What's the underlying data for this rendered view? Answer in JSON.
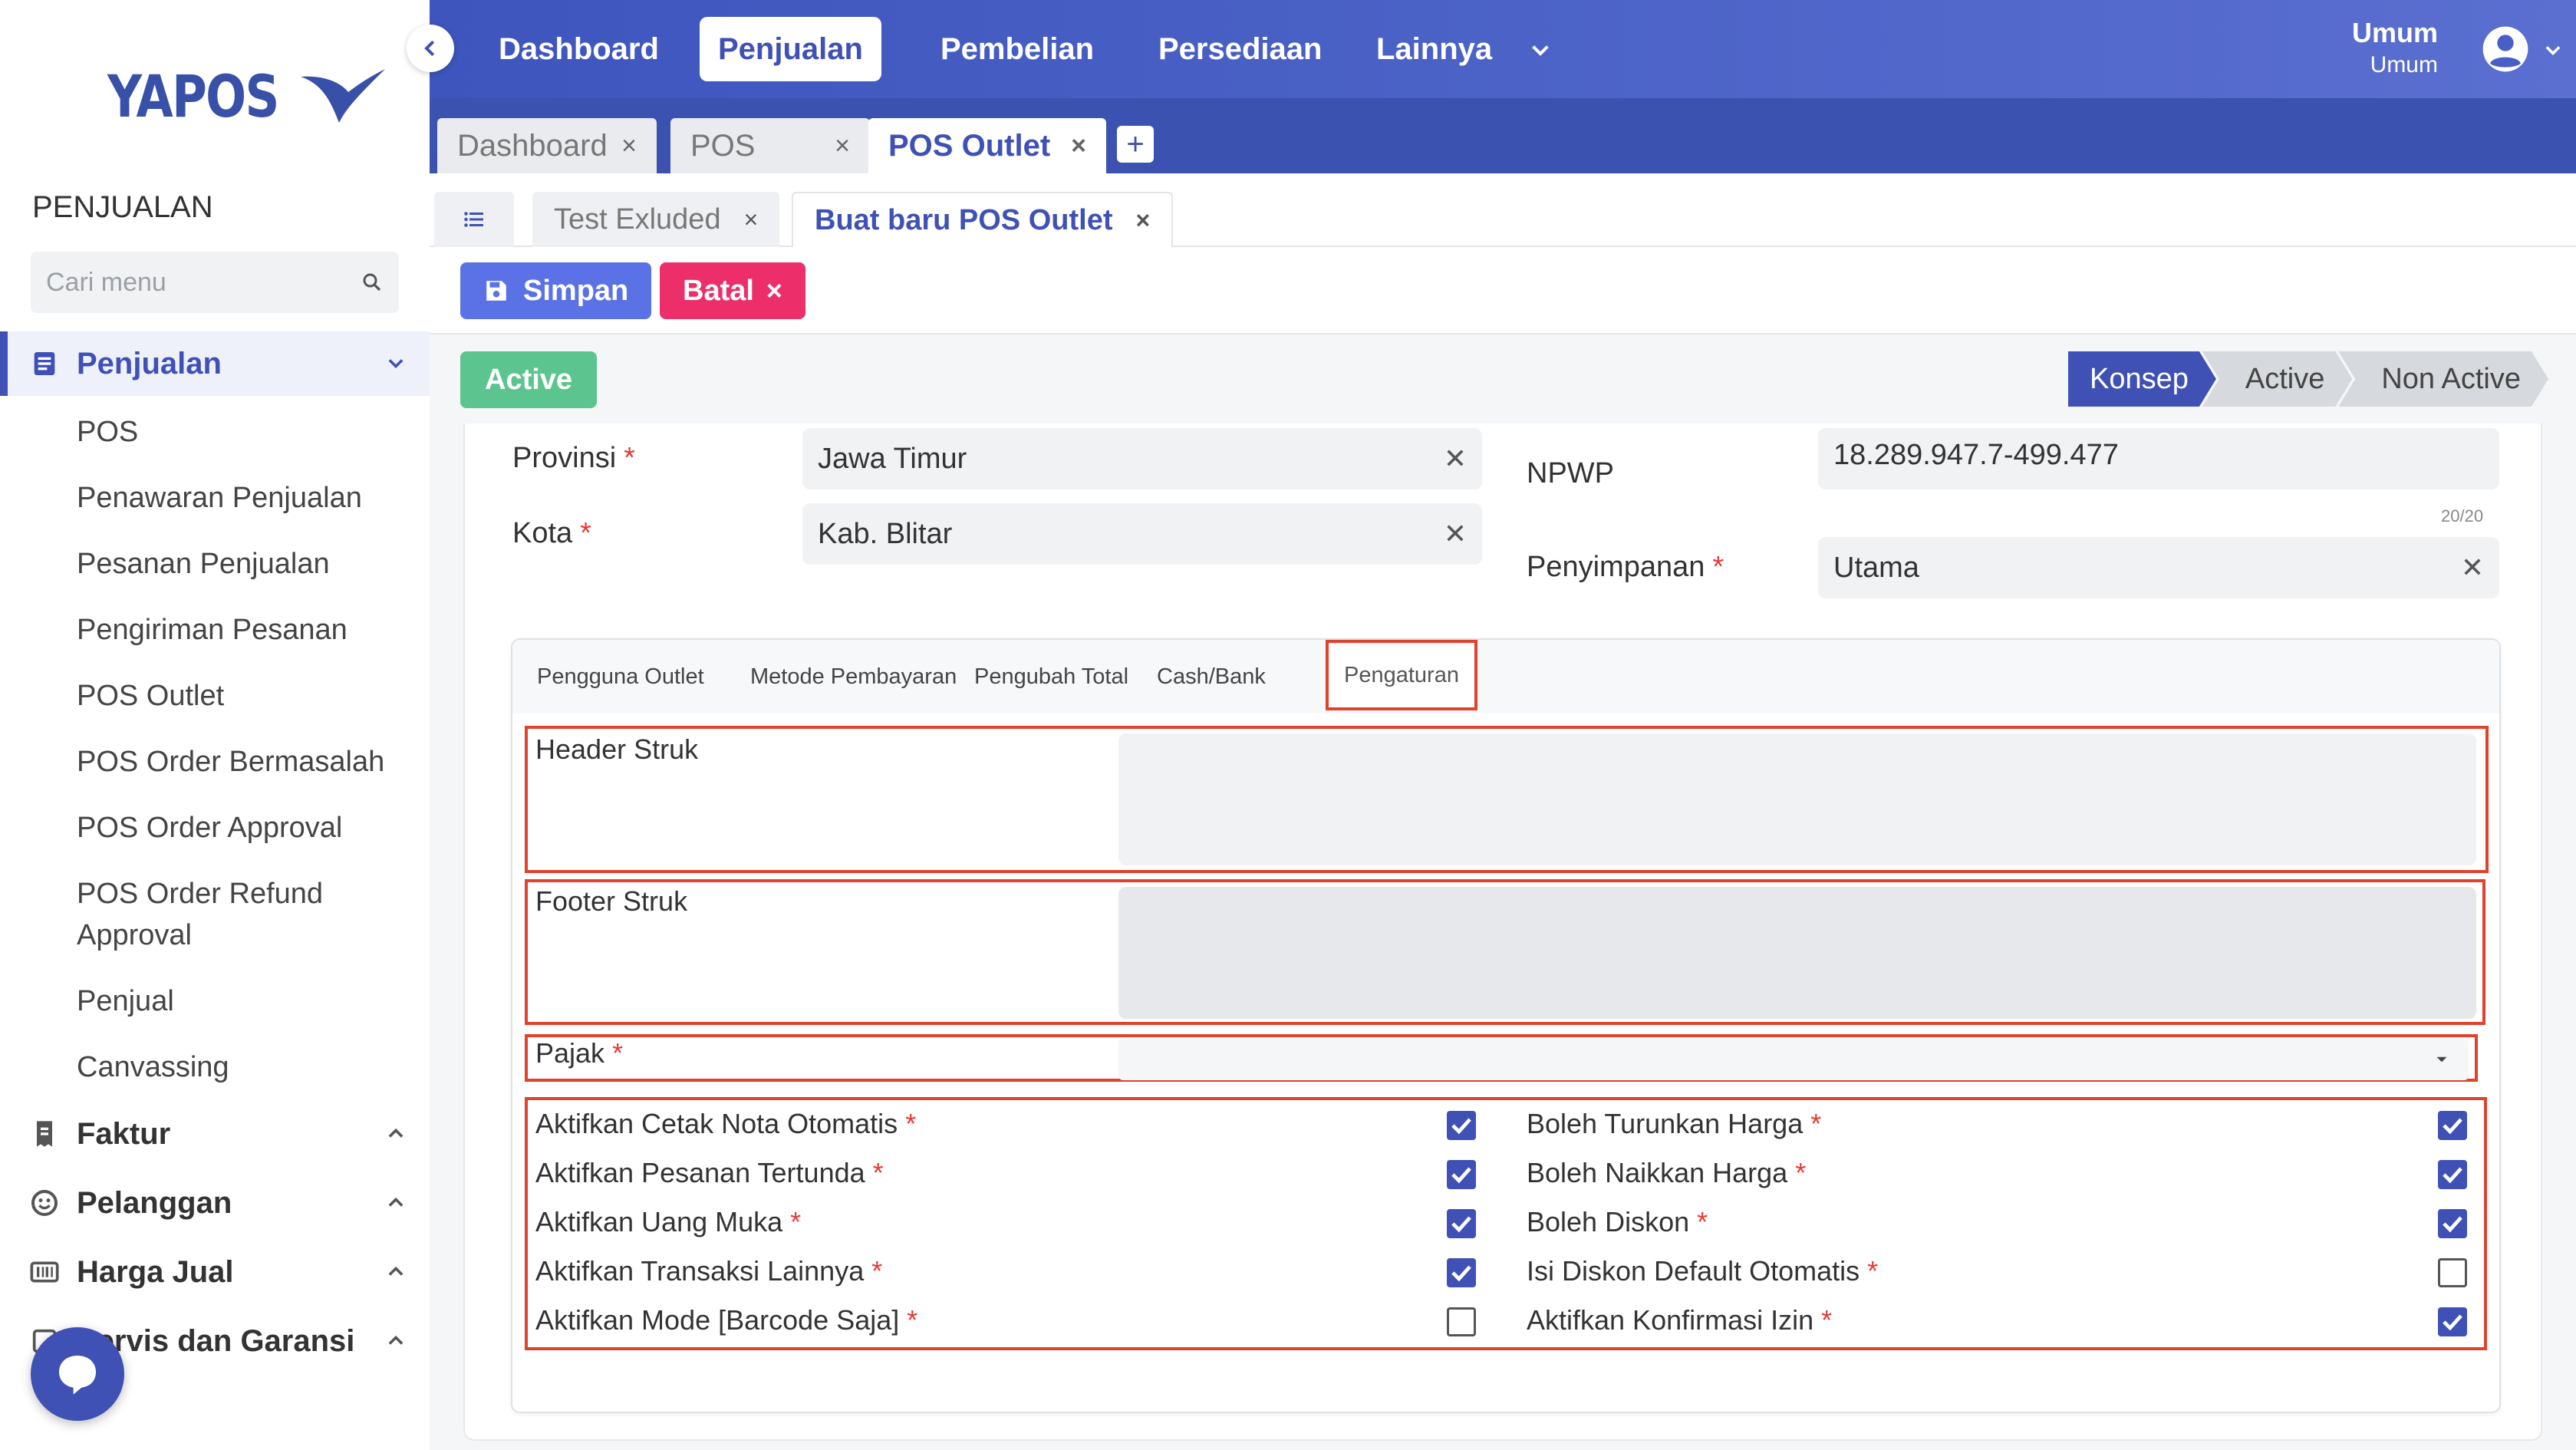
{
  "app": {
    "logo_text": "YAPOS"
  },
  "sidebar": {
    "section_title": "PENJUALAN",
    "search_placeholder": "Cari menu",
    "groups": [
      {
        "label": "Penjualan",
        "expanded": true
      },
      {
        "label": "Faktur",
        "expanded": false
      },
      {
        "label": "Pelanggan",
        "expanded": false
      },
      {
        "label": "Harga Jual",
        "expanded": false
      },
      {
        "label": "Servis dan Garansi",
        "expanded": false
      }
    ],
    "penjualan_items": [
      "POS",
      "Penawaran Penjualan",
      "Pesanan Penjualan",
      "Pengiriman Pesanan",
      "POS Outlet",
      "POS Order Bermasalah",
      "POS Order Approval",
      "POS Order Refund Approval",
      "Penjual",
      "Canvassing"
    ]
  },
  "topnav": {
    "items": [
      "Dashboard",
      "Penjualan",
      "Pembelian",
      "Persediaan",
      "Lainnya"
    ],
    "active": "Penjualan",
    "user_name": "Umum",
    "user_role": "Umum"
  },
  "window_tabs": {
    "items": [
      "Dashboard",
      "POS",
      "POS Outlet"
    ],
    "active": "POS Outlet"
  },
  "sub_tabs": {
    "items": [
      "Test Exluded",
      "Buat baru POS Outlet"
    ],
    "active": "Buat baru POS Outlet"
  },
  "toolbar": {
    "save_label": "Simpan",
    "cancel_label": "Batal"
  },
  "status": {
    "badge": "Active",
    "steps": [
      "Konsep",
      "Active",
      "Non Active"
    ],
    "current_step": "Konsep"
  },
  "form": {
    "provinsi_label": "Provinsi",
    "provinsi_value": "Jawa Timur",
    "kota_label": "Kota",
    "kota_value": "Kab. Blitar",
    "npwp_label": "NPWP",
    "npwp_value": "18.289.947.7-499.477",
    "npwp_counter": "20/20",
    "penyimpanan_label": "Penyimpanan",
    "penyimpanan_value": "Utama",
    "required_mark": "*"
  },
  "panel": {
    "tabs": [
      "Pengguna Outlet",
      "Metode Pembayaran",
      "Pengubah Total",
      "Cash/Bank",
      "Pengaturan"
    ],
    "active_tab": "Pengaturan",
    "header_struk_label": "Header Struk",
    "footer_struk_label": "Footer Struk",
    "pajak_label": "Pajak",
    "checkboxes_left": [
      {
        "label": "Aktifkan Cetak Nota Otomatis",
        "checked": true
      },
      {
        "label": "Aktifkan Pesanan Tertunda",
        "checked": true
      },
      {
        "label": "Aktifkan Uang Muka",
        "checked": true
      },
      {
        "label": "Aktifkan Transaksi Lainnya",
        "checked": true
      },
      {
        "label": "Aktifkan Mode [Barcode Saja]",
        "checked": false
      }
    ],
    "checkboxes_right": [
      {
        "label": "Boleh Turunkan Harga",
        "checked": true
      },
      {
        "label": "Boleh Naikkan Harga",
        "checked": true
      },
      {
        "label": "Boleh Diskon",
        "checked": true
      },
      {
        "label": "Isi Diskon Default Otomatis",
        "checked": false
      },
      {
        "label": "Aktifkan Konfirmasi Izin",
        "checked": true
      }
    ]
  },
  "colors": {
    "primary": "#3f51b5",
    "danger": "#ec2f6a",
    "success": "#5cc48e",
    "highlight": "#e0422e"
  }
}
